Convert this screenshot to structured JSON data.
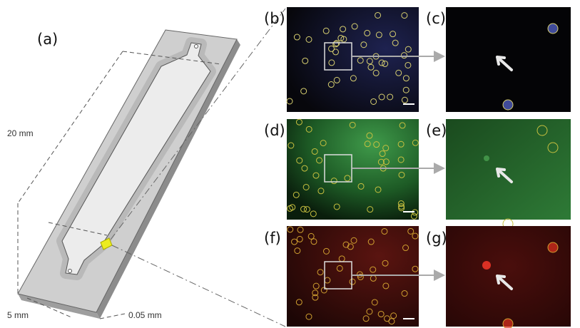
{
  "figure": {
    "panels": {
      "a": "(a)",
      "b": "(b)",
      "c": "(c)",
      "d": "(d)",
      "e": "(e)",
      "f": "(f)",
      "g": "(g)"
    },
    "dimensions": {
      "length": "20 mm",
      "width": "5 mm",
      "depth": "0.05 mm"
    }
  }
}
